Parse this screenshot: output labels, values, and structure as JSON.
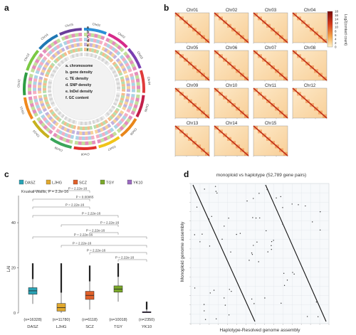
{
  "panels": {
    "a": "a",
    "b": "b",
    "c": "c",
    "d": "d"
  },
  "panel_a": {
    "chromosomes": [
      "Chr01",
      "Chr02",
      "Chr03",
      "Chr04",
      "Chr05",
      "Chr06",
      "Chr07",
      "Chr08",
      "Chr09",
      "Chr10",
      "Chr11",
      "Chr12",
      "Chr13",
      "Chr14",
      "Chr15"
    ],
    "track_letters": [
      "a",
      "b",
      "c",
      "d",
      "e",
      "f"
    ],
    "legend": [
      "a. chromosome",
      "b. gene density",
      "c. TE density",
      "d. SNP density",
      "e. InDel density",
      "f. GC content"
    ],
    "chr_colors": [
      "#2b8fd6",
      "#d62a8a",
      "#7a3fb0",
      "#e03b3b",
      "#c21f4a",
      "#e8861a",
      "#f0c419",
      "#e0302a",
      "#3aa55a",
      "#c7b11e",
      "#f08a1c",
      "#2f9e44",
      "#7ac943",
      "#1f77b4",
      "#6a3d9a"
    ]
  },
  "panel_b": {
    "maps": [
      "Chr01",
      "Chr02",
      "Chr03",
      "Chr04",
      "Chr05",
      "Chr06",
      "Chr07",
      "Chr08",
      "Chr09",
      "Chr10",
      "Chr11",
      "Chr12",
      "Chr13",
      "Chr14",
      "Chr15"
    ],
    "colorbar_ticks": [
      "18",
      "16",
      "14",
      "12",
      "10",
      "8",
      "6",
      "4",
      "2",
      "0"
    ],
    "colorbar_label": "Log2(contact count)"
  },
  "panel_c": {
    "legend": [
      "DASZ",
      "LJHG",
      "SCZ",
      "TGY",
      "YK10"
    ],
    "kruskal": "Kruskal-Wallis, P = 2.2e-16",
    "p_labels": [
      "P = 2.22e-16",
      "P = 0.00065",
      "P = 2.22e-16",
      "P = 2.22e-16",
      "P = 2.22e-16",
      "P = 2.22e-16",
      "P = 2.22e-16",
      "P = 2.22e-16",
      "P = 2.22e-16",
      "P = 2.22e-16"
    ],
    "ylabel": "LAI",
    "yticks": [
      "0",
      "20",
      "40"
    ],
    "chart_data": {
      "type": "box",
      "categories": [
        "DASZ",
        "LJHG",
        "SCZ",
        "TGY",
        "YK10"
      ],
      "counts": [
        "(n=16328)",
        "(n=11780)",
        "(n=6118)",
        "(n=10018)",
        "(n=2350)"
      ],
      "colors": [
        "#2aa3b5",
        "#e0a82e",
        "#e0602a",
        "#7aa82a",
        "#9b6bc0"
      ],
      "ylim": [
        0,
        52
      ],
      "series": [
        {
          "name": "DASZ",
          "q1": 8.3,
          "median": 9.8,
          "q3": 11.2,
          "whisker_low": 4,
          "whisker_high": 15,
          "outlier_max": 22
        },
        {
          "name": "LJHG",
          "q1": 0.8,
          "median": 2.4,
          "q3": 4.2,
          "whisker_low": 0,
          "whisker_high": 9,
          "outlier_max": 22
        },
        {
          "name": "SCZ",
          "q1": 6.0,
          "median": 7.8,
          "q3": 9.6,
          "whisker_low": 1.5,
          "whisker_high": 14,
          "outlier_max": 21
        },
        {
          "name": "TGY",
          "q1": 9.2,
          "median": 10.6,
          "q3": 12.0,
          "whisker_low": 5,
          "whisker_high": 16,
          "outlier_max": 22
        },
        {
          "name": "YK10",
          "q1": 0.1,
          "median": 0.3,
          "q3": 0.6,
          "whisker_low": 0,
          "whisker_high": 1.5,
          "outlier_max": 5
        }
      ]
    }
  },
  "panel_d": {
    "title": "monoploid vs haplotype (52,789 gene pairs)",
    "xlabel": "Haplotype-Resolved genome assembly",
    "ylabel": "Monoploid genome assembly"
  }
}
